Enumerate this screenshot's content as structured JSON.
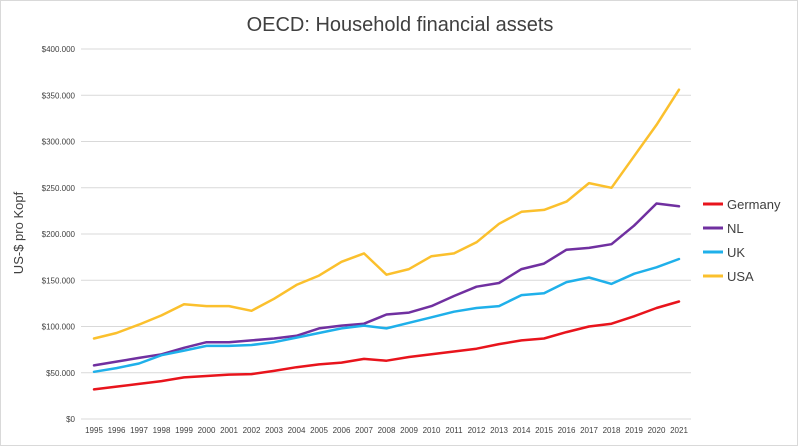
{
  "chart_data": {
    "type": "line",
    "title": "OECD: Household financial assets",
    "ylabel": "US-$ pro Kopf",
    "xlabel": "",
    "ylim": [
      0,
      400000
    ],
    "grid": true,
    "legend_position": "right",
    "x": [
      "1995",
      "1996",
      "1997",
      "1998",
      "1999",
      "2000",
      "2001",
      "2002",
      "2003",
      "2004",
      "2005",
      "2006",
      "2007",
      "2008",
      "2009",
      "2010",
      "2011",
      "2012",
      "2013",
      "2014",
      "2015",
      "2016",
      "2017",
      "2018",
      "2019",
      "2020",
      "2021"
    ],
    "y_ticks": [
      {
        "value": 0,
        "label": "$0"
      },
      {
        "value": 50000,
        "label": "$50.000"
      },
      {
        "value": 100000,
        "label": "$100.000"
      },
      {
        "value": 150000,
        "label": "$150.000"
      },
      {
        "value": 200000,
        "label": "$200.000"
      },
      {
        "value": 250000,
        "label": "$250.000"
      },
      {
        "value": 300000,
        "label": "$300.000"
      },
      {
        "value": 350000,
        "label": "$350.000"
      },
      {
        "value": 400000,
        "label": "$400.000"
      }
    ],
    "series": [
      {
        "name": "Germany",
        "color": "#e8141c",
        "values": [
          32000,
          35000,
          38000,
          41000,
          45000,
          46500,
          48000,
          48500,
          52000,
          56000,
          59000,
          61000,
          65000,
          63000,
          67000,
          70000,
          73000,
          76000,
          81000,
          85000,
          87000,
          94000,
          100000,
          103000,
          111000,
          120000,
          127000
        ]
      },
      {
        "name": "NL",
        "color": "#7030a0",
        "values": [
          58000,
          62000,
          66000,
          70000,
          77000,
          83000,
          83000,
          85000,
          87000,
          90000,
          98000,
          101000,
          103000,
          113000,
          115000,
          122000,
          133000,
          143000,
          147000,
          162000,
          168000,
          183000,
          185000,
          189000,
          209000,
          233000,
          230000
        ]
      },
      {
        "name": "UK",
        "color": "#1fb0ea",
        "values": [
          51000,
          55000,
          60000,
          69000,
          74000,
          79000,
          79000,
          80000,
          83000,
          88000,
          93000,
          98000,
          101000,
          98000,
          104000,
          110000,
          116000,
          120000,
          122000,
          134000,
          136000,
          148000,
          153000,
          146000,
          157000,
          164000,
          173000
        ]
      },
      {
        "name": "USA",
        "color": "#fbc02d",
        "values": [
          87000,
          93000,
          102000,
          112000,
          124000,
          122000,
          122000,
          117000,
          130000,
          145000,
          155000,
          170000,
          179000,
          156000,
          162000,
          176000,
          179000,
          191000,
          211000,
          224000,
          226000,
          235000,
          255000,
          250000,
          284000,
          318000,
          356000
        ]
      }
    ]
  }
}
